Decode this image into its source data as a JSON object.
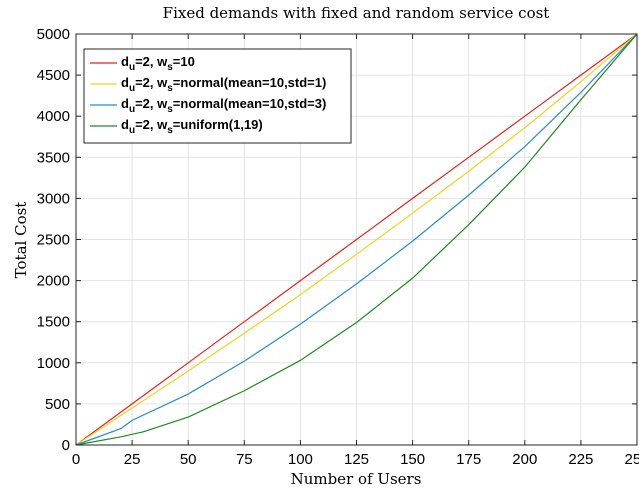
{
  "chart_data": {
    "type": "line",
    "title": "Fixed demands with fixed and random service cost",
    "xlabel": "Number of Users",
    "ylabel": "Total Cost",
    "xlim": [
      0,
      250
    ],
    "ylim": [
      0,
      5000
    ],
    "xticks": [
      0,
      25,
      50,
      75,
      100,
      125,
      150,
      175,
      200,
      225,
      250
    ],
    "yticks": [
      0,
      500,
      1000,
      1500,
      2000,
      2500,
      3000,
      3500,
      4000,
      4500,
      5000
    ],
    "grid": true,
    "legend_position": "top-left",
    "series": [
      {
        "legend": {
          "d_main": "d",
          "d_sub": "u",
          "d_rest": "=2, w",
          "w_sub": "s",
          "w_rest": "=10"
        },
        "color": "#e5221e",
        "x": [
          0,
          25,
          50,
          75,
          100,
          125,
          150,
          175,
          200,
          225,
          250
        ],
        "y": [
          0,
          500,
          1000,
          1500,
          2000,
          2500,
          3000,
          3500,
          4000,
          4500,
          5000
        ]
      },
      {
        "legend": {
          "d_main": "d",
          "d_sub": "u",
          "d_rest": "=2, w",
          "w_sub": "s",
          "w_rest": "=normal(mean=10,std=1)"
        },
        "color": "#f2d21b",
        "x": [
          0,
          25,
          50,
          75,
          100,
          125,
          150,
          175,
          200,
          225,
          250
        ],
        "y": [
          0,
          450,
          900,
          1360,
          1830,
          2320,
          2820,
          3330,
          3860,
          4420,
          5000
        ]
      },
      {
        "legend": {
          "d_main": "d",
          "d_sub": "u",
          "d_rest": "=2, w",
          "w_sub": "s",
          "w_rest": "=normal(mean=10,std=3)"
        },
        "color": "#2a8bc9",
        "x": [
          0,
          20,
          25,
          50,
          75,
          100,
          125,
          150,
          175,
          200,
          225,
          250
        ],
        "y": [
          0,
          200,
          300,
          620,
          1020,
          1470,
          1960,
          2480,
          3040,
          3630,
          4290,
          5000
        ]
      },
      {
        "legend": {
          "d_main": "d",
          "d_sub": "u",
          "d_rest": "=2, w",
          "w_sub": "s",
          "w_rest": "=uniform(1,19)"
        },
        "color": "#1f8a1f",
        "x": [
          0,
          20,
          30,
          50,
          75,
          100,
          125,
          150,
          175,
          200,
          225,
          250
        ],
        "y": [
          0,
          100,
          160,
          340,
          660,
          1030,
          1490,
          2030,
          2680,
          3380,
          4200,
          5000
        ]
      }
    ]
  }
}
